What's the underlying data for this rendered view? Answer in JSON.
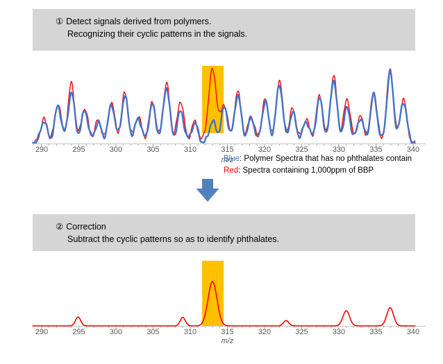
{
  "steps": [
    {
      "number": "①",
      "line1": "Detect signals derived from polymers.",
      "line2": "Recognizing their cyclic patterns in the signals."
    },
    {
      "number": "②",
      "line1": "Correction",
      "line2": "Subtract the cyclic patterns so as to identify phthalates."
    }
  ],
  "legend": {
    "items": [
      {
        "label": "Blue",
        "label_color": "#4472C4",
        "text": ": Polymer Spectra that has no phthalates contain"
      },
      {
        "label": "Red",
        "label_color": "#FF0000",
        "text": ": Spectra containing 1,000ppm of BBP"
      }
    ]
  },
  "icons": {
    "arrow": "block-arrow-down"
  },
  "colors": {
    "header_bg": "#D5D5D5",
    "highlight": "#FFC000",
    "arrow": "#4F81BD",
    "axis_line": "#C3C3C3",
    "tick": "#A6A6A6",
    "tick_label": "#595959",
    "blue_trace": "#4472C4",
    "red_trace": "#FF0000"
  },
  "chart_data": [
    {
      "id": "top_spectrum",
      "type": "line",
      "title": "",
      "xlabel": "m/z",
      "ylabel": "",
      "xlim": [
        290,
        340
      ],
      "x_major_ticks": [
        290,
        295,
        300,
        305,
        310,
        315,
        320,
        325,
        330,
        335,
        340
      ],
      "x_minor_step": 1,
      "grid": false,
      "legend_position": "below-right",
      "highlight_region": {
        "x0": 311.6,
        "x1": 314.5,
        "color": "#FFC000"
      },
      "peak_sigma": 0.45,
      "series": [
        {
          "name": "blue",
          "color": "#4472C4",
          "line_width": 2.4,
          "peaks": [
            [
              290.3,
              0.3
            ],
            [
              292.2,
              0.5
            ],
            [
              294.0,
              0.68
            ],
            [
              295.8,
              0.44
            ],
            [
              297.6,
              0.28
            ],
            [
              299.4,
              0.52
            ],
            [
              301.2,
              0.63
            ],
            [
              303.0,
              0.34
            ],
            [
              304.9,
              0.52
            ],
            [
              306.8,
              0.75
            ],
            [
              308.7,
              0.43
            ],
            [
              310.6,
              0.27
            ],
            [
              313.0,
              0.3
            ],
            [
              314.6,
              0.48
            ],
            [
              316.4,
              0.65
            ],
            [
              318.2,
              0.34
            ],
            [
              320.1,
              0.56
            ],
            [
              322.0,
              0.79
            ],
            [
              323.8,
              0.41
            ],
            [
              325.6,
              0.3
            ],
            [
              327.4,
              0.6
            ],
            [
              329.3,
              0.85
            ],
            [
              331.1,
              0.47
            ],
            [
              332.9,
              0.34
            ],
            [
              334.7,
              0.65
            ],
            [
              336.9,
              0.95
            ],
            [
              338.7,
              0.56
            ]
          ]
        },
        {
          "name": "red",
          "color": "#FF0000",
          "line_width": 1.4,
          "peaks": [
            [
              290.3,
              0.32
            ],
            [
              292.2,
              0.53
            ],
            [
              294.0,
              0.8
            ],
            [
              295.8,
              0.47
            ],
            [
              297.6,
              0.31
            ],
            [
              299.4,
              0.55
            ],
            [
              301.2,
              0.67
            ],
            [
              303.0,
              0.36
            ],
            [
              304.9,
              0.55
            ],
            [
              306.8,
              0.8
            ],
            [
              308.7,
              0.57
            ],
            [
              310.6,
              0.29
            ],
            [
              313.0,
              0.98,
              0.55
            ],
            [
              314.6,
              0.51
            ],
            [
              316.4,
              0.69
            ],
            [
              318.2,
              0.36
            ],
            [
              320.1,
              0.59
            ],
            [
              322.0,
              0.84
            ],
            [
              323.8,
              0.47
            ],
            [
              325.6,
              0.32
            ],
            [
              327.4,
              0.64
            ],
            [
              329.3,
              0.9
            ],
            [
              331.1,
              0.6
            ],
            [
              332.9,
              0.36
            ],
            [
              334.7,
              0.69
            ],
            [
              336.9,
              1.0
            ],
            [
              338.7,
              0.59
            ]
          ]
        }
      ]
    },
    {
      "id": "corrected_spectrum",
      "type": "line",
      "title": "",
      "xlabel": "m/z",
      "ylabel": "",
      "xlim": [
        290,
        340
      ],
      "x_major_ticks": [
        290,
        295,
        300,
        305,
        310,
        315,
        320,
        325,
        330,
        335,
        340
      ],
      "x_minor_step": 1,
      "grid": false,
      "highlight_region": {
        "x0": 311.6,
        "x1": 314.5,
        "color": "#FFC000"
      },
      "peak_sigma": 0.35,
      "series": [
        {
          "name": "red",
          "color": "#FF0000",
          "line_width": 1.6,
          "peaks": [
            [
              294.9,
              0.2
            ],
            [
              309.0,
              0.19
            ],
            [
              313.0,
              1.0,
              0.6
            ],
            [
              322.9,
              0.12
            ],
            [
              331.0,
              0.34,
              0.45
            ],
            [
              336.9,
              0.41,
              0.45
            ]
          ]
        }
      ]
    }
  ]
}
